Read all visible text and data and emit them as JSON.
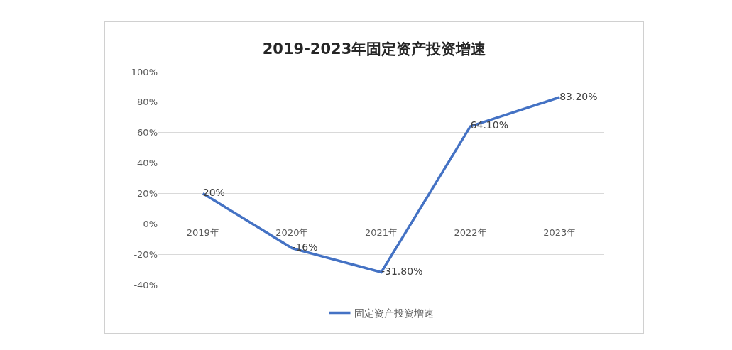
{
  "chart_data": {
    "type": "line",
    "title": "2019-2023年固定资产投资增速",
    "categories": [
      "2019年",
      "2020年",
      "2021年",
      "2022年",
      "2023年"
    ],
    "series": [
      {
        "name": "固定资产投资增速",
        "color": "#4472c4",
        "values": [
          20,
          -16,
          -31.8,
          64.1,
          83.2
        ],
        "value_labels": [
          "20%",
          "-16%",
          "-31.80%",
          "64.10%",
          "83.20%"
        ]
      }
    ],
    "ylim": [
      -40,
      100
    ],
    "yticks": [
      {
        "value": -40,
        "label": "-40%"
      },
      {
        "value": -20,
        "label": "-20%"
      },
      {
        "value": 0,
        "label": "0%"
      },
      {
        "value": 20,
        "label": "20%"
      },
      {
        "value": 40,
        "label": "40%"
      },
      {
        "value": 60,
        "label": "60%"
      },
      {
        "value": 80,
        "label": "80%"
      },
      {
        "value": 100,
        "label": "100%"
      }
    ],
    "grid": "y",
    "legend": "bottom",
    "marker": "none",
    "line_style": "solid"
  }
}
